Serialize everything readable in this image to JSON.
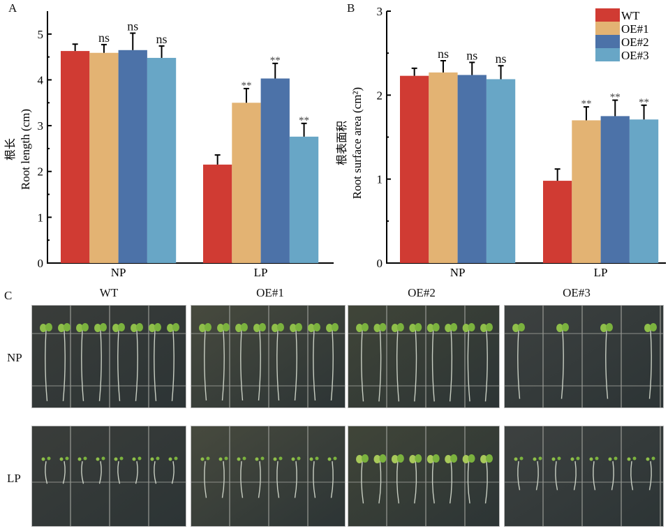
{
  "figure": {
    "panel_letters": [
      "A",
      "B",
      "C"
    ]
  },
  "chart_data": [
    {
      "type": "bar",
      "panel": "A",
      "title": "",
      "xlabel": "",
      "ylabel_cn": "根长",
      "ylabel": "Root length (cm)",
      "ylim": [
        0,
        5.5
      ],
      "yticks": [
        0,
        1,
        2,
        3,
        4,
        5
      ],
      "categories": [
        "NP",
        "LP"
      ],
      "series": [
        {
          "name": "WT",
          "color": "#D03B33",
          "values": [
            4.63,
            2.15
          ],
          "errors": [
            0.15,
            0.21
          ],
          "sig": [
            "",
            ""
          ]
        },
        {
          "name": "OE#1",
          "color": "#E3B373",
          "values": [
            4.59,
            3.5
          ],
          "errors": [
            0.18,
            0.31
          ],
          "sig": [
            "ns",
            "**"
          ]
        },
        {
          "name": "OE#2",
          "color": "#4C72A8",
          "values": [
            4.65,
            4.03
          ],
          "errors": [
            0.37,
            0.33
          ],
          "sig": [
            "ns",
            "**"
          ]
        },
        {
          "name": "OE#3",
          "color": "#68A6C6",
          "values": [
            4.48,
            2.76
          ],
          "errors": [
            0.26,
            0.29
          ],
          "sig": [
            "ns",
            "**"
          ]
        }
      ],
      "grid": false,
      "legend": "none"
    },
    {
      "type": "bar",
      "panel": "B",
      "title": "",
      "xlabel": "",
      "ylabel_cn": "根表面积",
      "ylabel": "Root surface area (cm²)",
      "ylim": [
        0,
        3
      ],
      "yticks": [
        0,
        1,
        2,
        3
      ],
      "categories": [
        "NP",
        "LP"
      ],
      "series": [
        {
          "name": "WT",
          "color": "#D03B33",
          "values": [
            2.23,
            0.98
          ],
          "errors": [
            0.09,
            0.14
          ],
          "sig": [
            "",
            ""
          ]
        },
        {
          "name": "OE#1",
          "color": "#E3B373",
          "values": [
            2.27,
            1.7
          ],
          "errors": [
            0.14,
            0.16
          ],
          "sig": [
            "ns",
            "**"
          ]
        },
        {
          "name": "OE#2",
          "color": "#4C72A8",
          "values": [
            2.24,
            1.75
          ],
          "errors": [
            0.15,
            0.19
          ],
          "sig": [
            "ns",
            "**"
          ]
        },
        {
          "name": "OE#3",
          "color": "#68A6C6",
          "values": [
            2.19,
            1.71
          ],
          "errors": [
            0.16,
            0.17
          ],
          "sig": [
            "ns",
            "**"
          ]
        }
      ],
      "grid": false,
      "legend": "top-right"
    }
  ],
  "photos": {
    "columns": [
      "WT",
      "OE#1",
      "OE#2",
      "OE#3"
    ],
    "rows": [
      "NP",
      "LP"
    ]
  }
}
